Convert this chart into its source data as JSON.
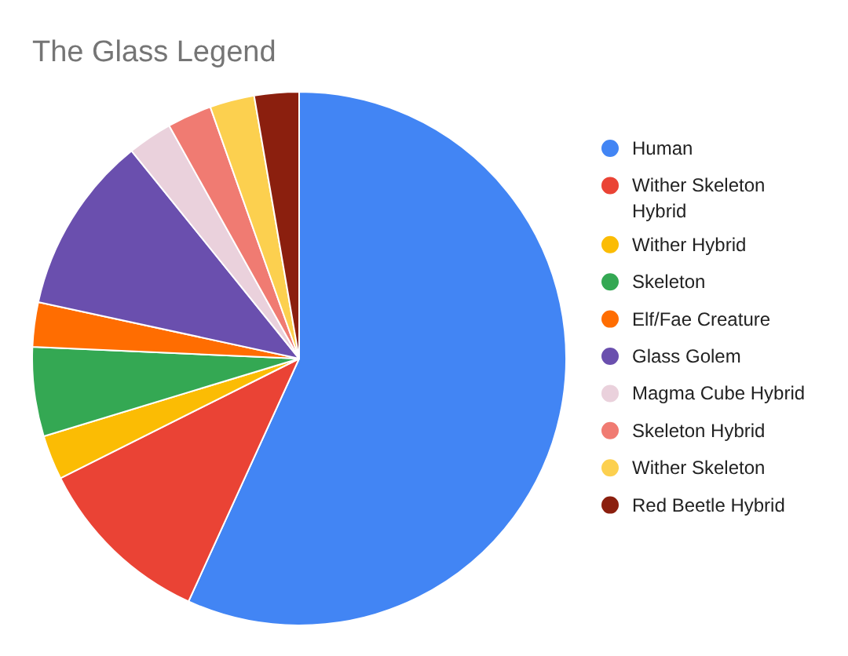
{
  "chart_data": {
    "type": "pie",
    "title": "The Glass Legend",
    "categories": [
      "Human",
      "Wither Skeleton Hybrid",
      "Wither Hybrid",
      "Skeleton",
      "Elf/Fae Creature",
      "Glass Golem",
      "Magma Cube Hybrid",
      "Skeleton Hybrid",
      "Wither Skeleton",
      "Red Beetle Hybrid"
    ],
    "values": [
      56.8,
      10.8,
      2.7,
      5.4,
      2.7,
      10.8,
      2.7,
      2.7,
      2.7,
      2.7
    ],
    "colors": [
      "#4285f4",
      "#ea4335",
      "#fbbc04",
      "#34a853",
      "#ff6d01",
      "#6a4fae",
      "#ead1dc",
      "#f07b72",
      "#fcd04f",
      "#8b1f0e"
    ],
    "legend": "right"
  }
}
